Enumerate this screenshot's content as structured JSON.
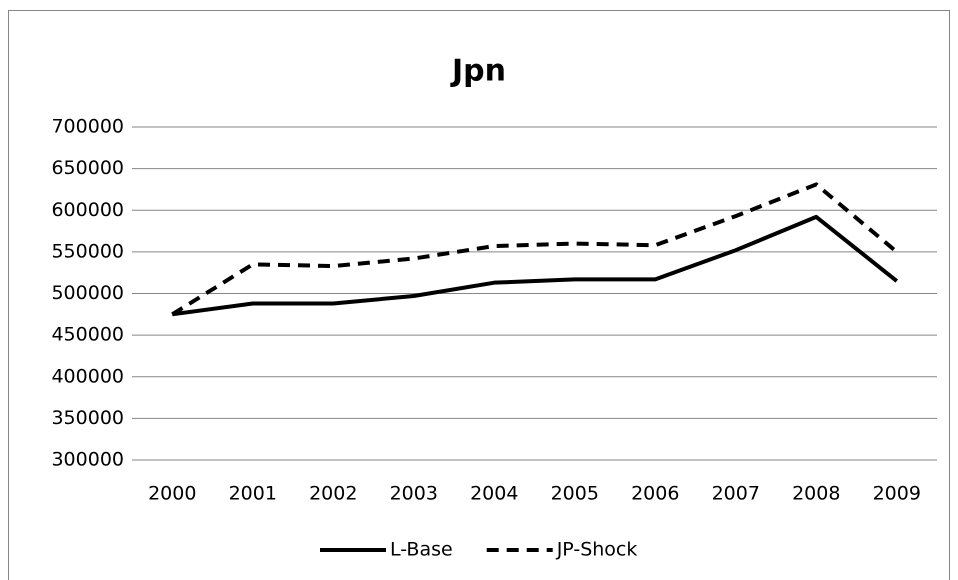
{
  "chart_data": {
    "type": "line",
    "title": "Jpn",
    "categories": [
      "2000",
      "2001",
      "2002",
      "2003",
      "2004",
      "2005",
      "2006",
      "2007",
      "2008",
      "2009"
    ],
    "series": [
      {
        "name": "L-Base",
        "color": "#000000",
        "line_style": "solid",
        "values": [
          475000,
          488000,
          488000,
          497000,
          513000,
          517000,
          517000,
          552000,
          592000,
          515000
        ]
      },
      {
        "name": "JP-Shock",
        "color": "#000000",
        "line_style": "dashed",
        "values": [
          475000,
          535000,
          533000,
          542000,
          557000,
          560000,
          558000,
          593000,
          631000,
          550000
        ]
      }
    ],
    "ylim": [
      300000,
      700000
    ],
    "yticks": [
      300000,
      350000,
      400000,
      450000,
      500000,
      550000,
      600000,
      650000,
      700000
    ],
    "grid": true,
    "legend": "bottom"
  }
}
